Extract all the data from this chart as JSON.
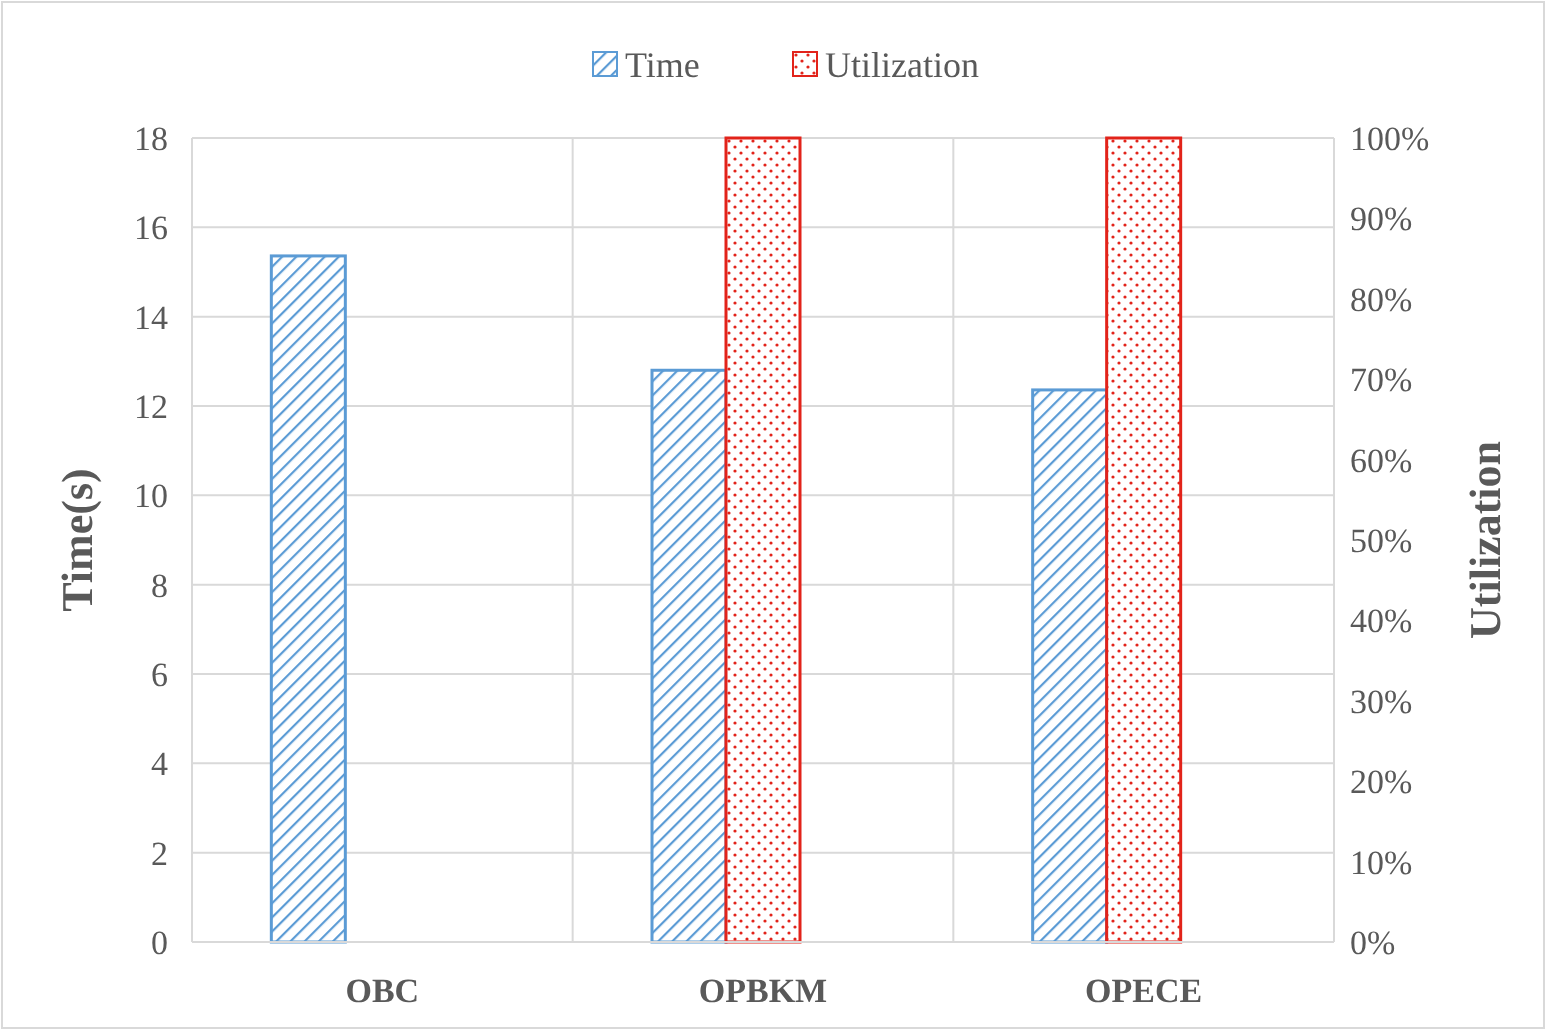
{
  "chart_data": {
    "type": "bar",
    "categories": [
      "OBC",
      "OPBKM",
      "OPECE"
    ],
    "series": [
      {
        "name": "Time",
        "color": "#5b9bd5",
        "values": [
          15.36,
          12.8,
          12.36
        ]
      },
      {
        "name": "Utilization",
        "color": "#e2231a",
        "values": [
          0,
          100,
          100
        ],
        "axis": "y2"
      }
    ],
    "ylabel": "Time(s)",
    "y2label": "Utilization",
    "ylim": [
      0,
      18
    ],
    "yticks": [
      0,
      2,
      4,
      6,
      8,
      10,
      12,
      14,
      16,
      18
    ],
    "y2lim": [
      0,
      100
    ],
    "y2ticks": [
      {
        "value": 0,
        "label": "0%"
      },
      {
        "value": 10,
        "label": "10%"
      },
      {
        "value": 20,
        "label": "20%"
      },
      {
        "value": 30,
        "label": "30%"
      },
      {
        "value": 40,
        "label": "40%"
      },
      {
        "value": 50,
        "label": "50%"
      },
      {
        "value": 60,
        "label": "60%"
      },
      {
        "value": 70,
        "label": "70%"
      },
      {
        "value": 80,
        "label": "80%"
      },
      {
        "value": 90,
        "label": "90%"
      },
      {
        "value": 100,
        "label": "100%"
      }
    ],
    "grid": true,
    "legend": "top"
  }
}
